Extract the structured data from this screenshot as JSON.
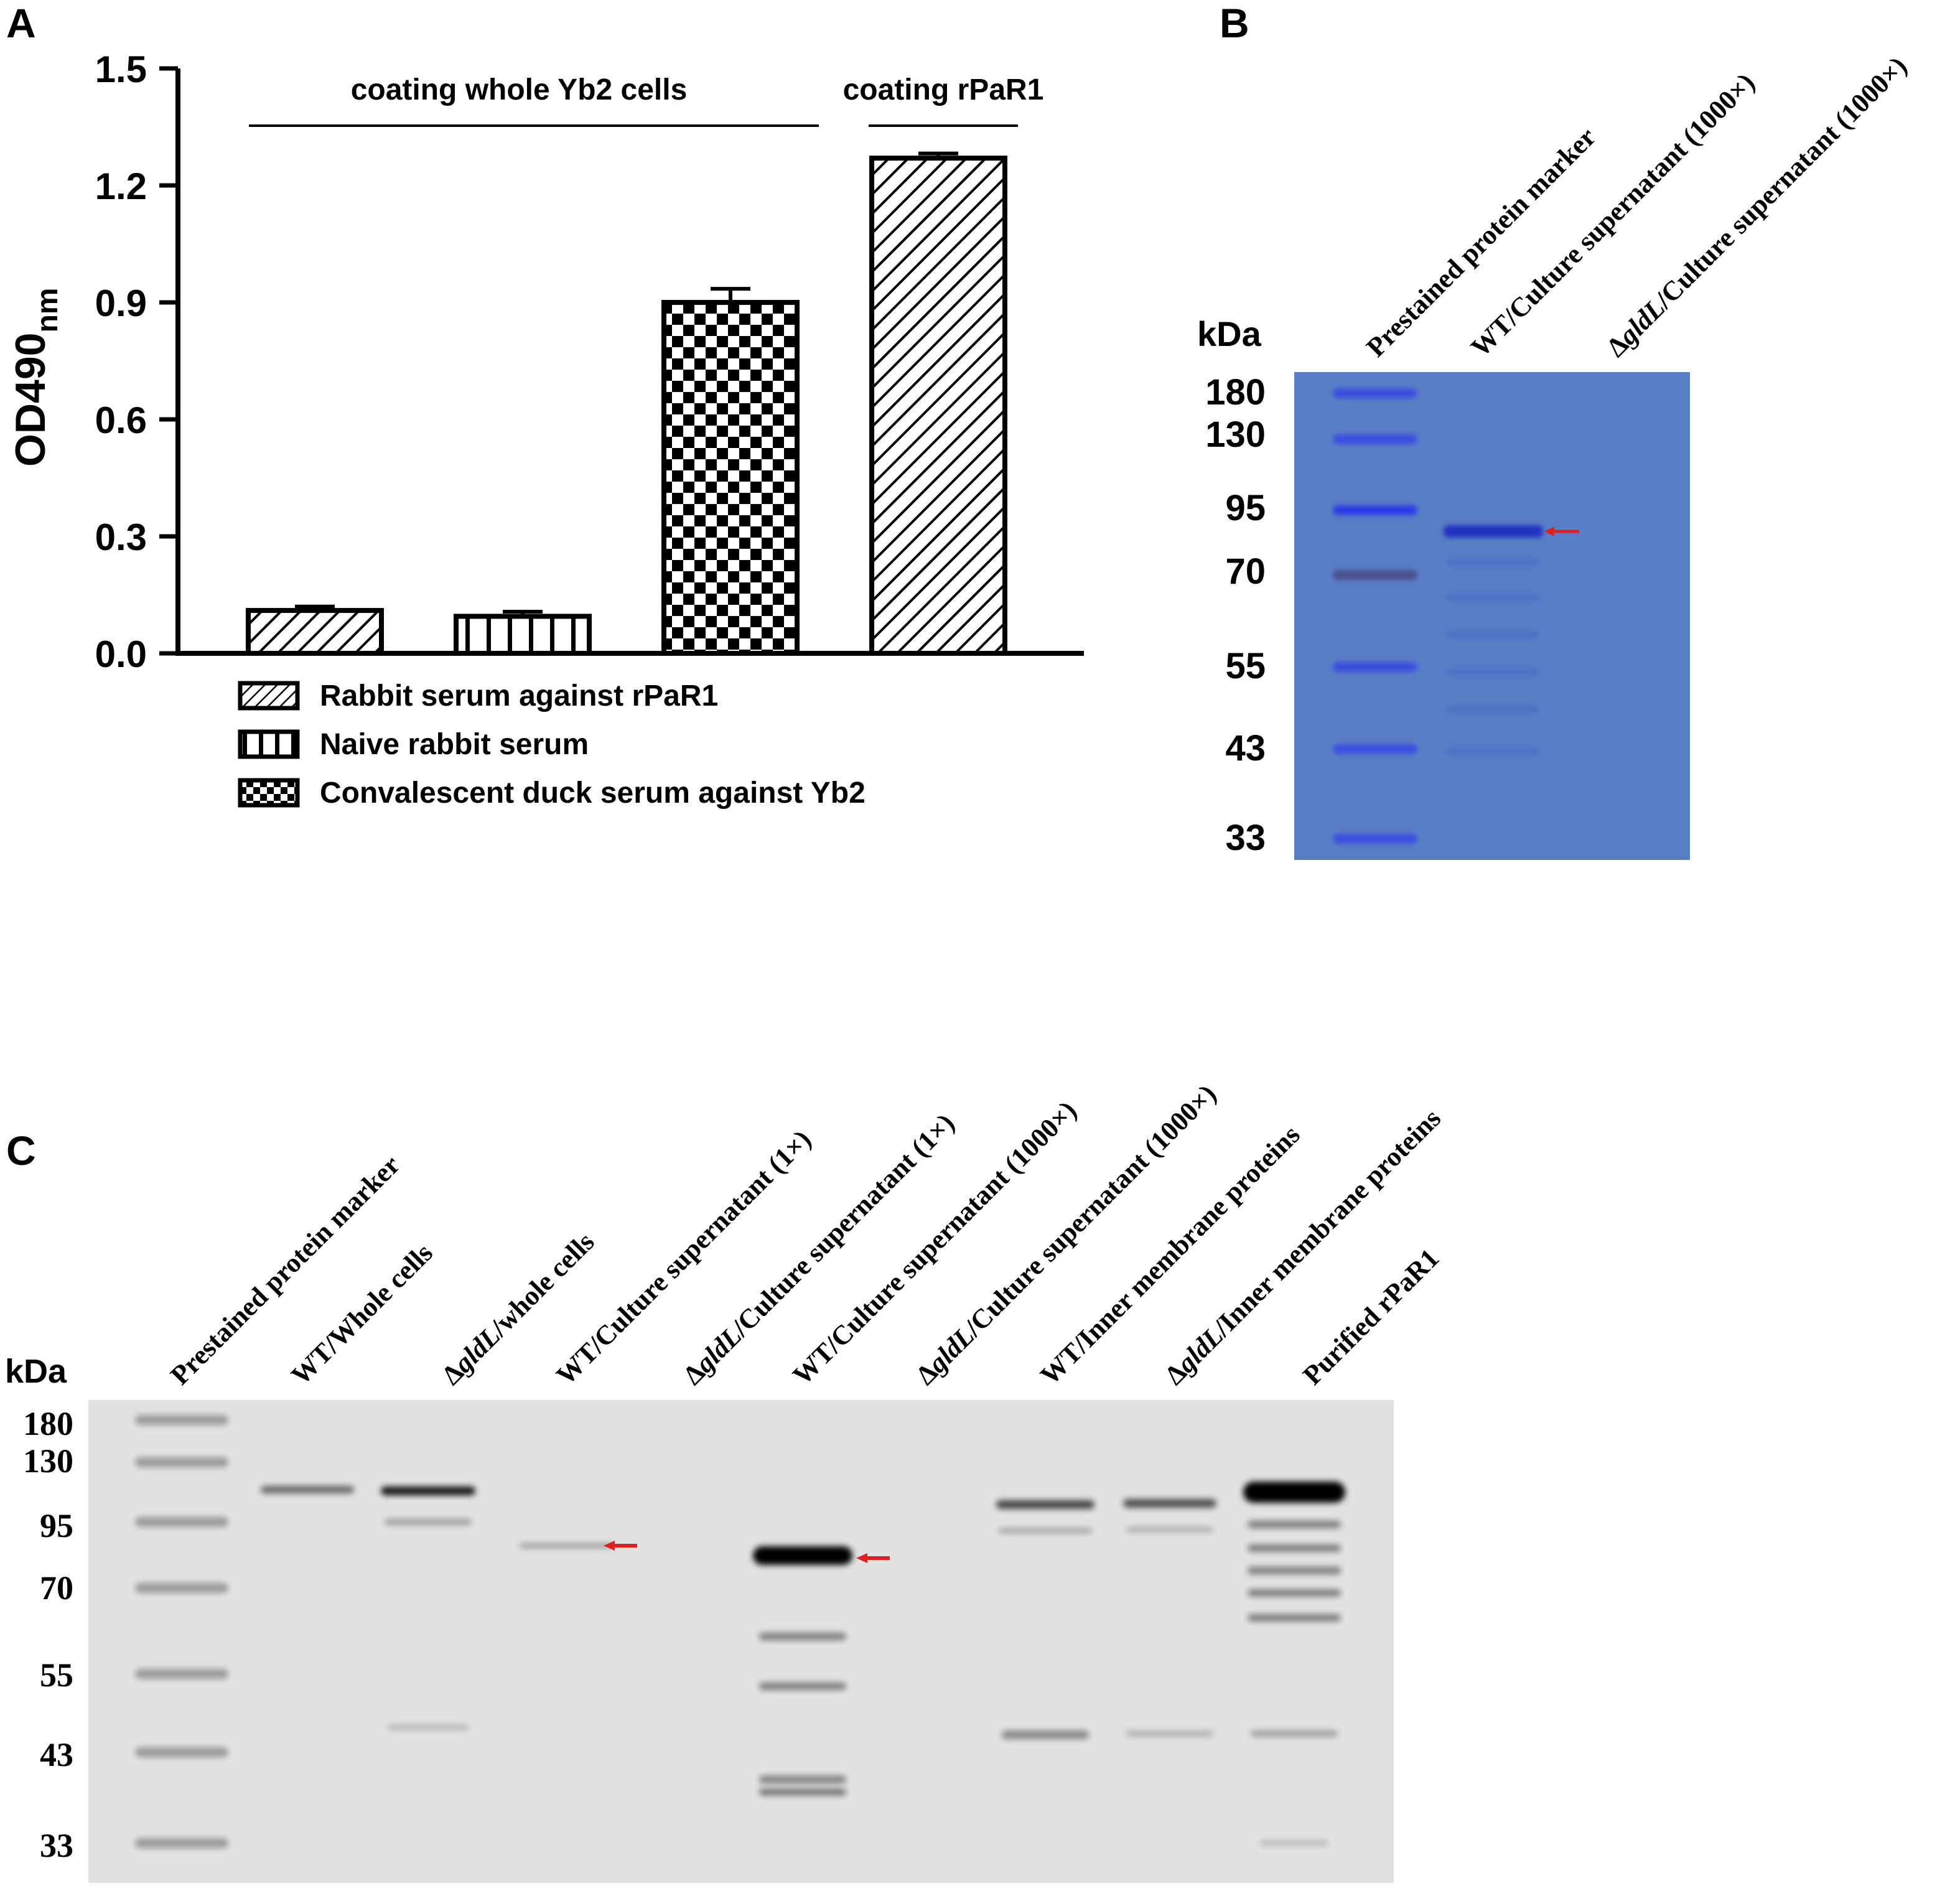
{
  "panels": {
    "a": {
      "label": "A"
    },
    "b": {
      "label": "B"
    },
    "c": {
      "label": "C"
    }
  },
  "chart_data": {
    "type": "bar",
    "ylabel_main": "OD490",
    "ylabel_sub": "nm",
    "ylim": [
      0,
      1.5
    ],
    "yticks": [
      "0.0",
      "0.3",
      "0.6",
      "0.9",
      "1.2",
      "1.5"
    ],
    "grid": false,
    "groups": [
      {
        "label": "coating whole Yb2 cells"
      },
      {
        "label": "coating rPaR1"
      }
    ],
    "bars": [
      {
        "series": "Rabbit serum against rPaR1",
        "value": 0.11,
        "error": 0.01,
        "pattern": "hatch"
      },
      {
        "series": "Naive rabbit serum",
        "value": 0.095,
        "error": 0.012,
        "pattern": "vertical"
      },
      {
        "series": "Convalescent duck serum against Yb2",
        "value": 0.9,
        "error": 0.035,
        "pattern": "checker"
      },
      {
        "series": "Rabbit serum against rPaR1",
        "value": 1.27,
        "error": 0.012,
        "pattern": "hatch"
      }
    ],
    "legend": [
      {
        "name": "Rabbit serum against rPaR1",
        "pattern": "hatch"
      },
      {
        "name": "Naive rabbit serum",
        "pattern": "vertical"
      },
      {
        "name": "Convalescent duck serum against Yb2",
        "pattern": "checker"
      }
    ],
    "legend_position": "bottom-left"
  },
  "gel_b": {
    "unit": "kDa",
    "markers": [
      "180",
      "130",
      "95",
      "70",
      "55",
      "43",
      "33"
    ],
    "lanes": [
      {
        "pre": "",
        "italic": "",
        "post": "Prestained protein marker"
      },
      {
        "pre": "",
        "italic": "",
        "post": "WT/Culture supernatant (1000×)"
      },
      {
        "pre": "Δ",
        "italic": "gldL",
        "post": "/Culture supernatant (1000×)"
      }
    ],
    "background_color": "#5a7ec6",
    "marker_color": "#3a4fe0",
    "arrow_color": "#e02020"
  },
  "blot_c": {
    "unit": "kDa",
    "markers": [
      "180",
      "130",
      "95",
      "70",
      "55",
      "43",
      "33"
    ],
    "lanes": [
      {
        "pre": "",
        "italic": "",
        "post": "Prestained protein marker"
      },
      {
        "pre": "",
        "italic": "",
        "post": "WT/Whole cells"
      },
      {
        "pre": "Δ",
        "italic": "gldL",
        "post": "/whole cells"
      },
      {
        "pre": "",
        "italic": "",
        "post": "WT/Culture supernatant (1×)"
      },
      {
        "pre": "Δ",
        "italic": "gldL",
        "post": "/Culture supernatant (1×)"
      },
      {
        "pre": "",
        "italic": "",
        "post": "WT/Culture supernatant (1000×)"
      },
      {
        "pre": "Δ",
        "italic": "gldL",
        "post": "/Culture supernatant (1000×)"
      },
      {
        "pre": "",
        "italic": "",
        "post": "WT/Inner membrane proteins"
      },
      {
        "pre": "Δ",
        "italic": "gldL",
        "post": "/Inner membrane proteins"
      },
      {
        "pre": "",
        "italic": "",
        "post": "Purified rPaR1"
      }
    ],
    "background_color": "#e2e2e2",
    "arrow_color": "#e02020"
  }
}
